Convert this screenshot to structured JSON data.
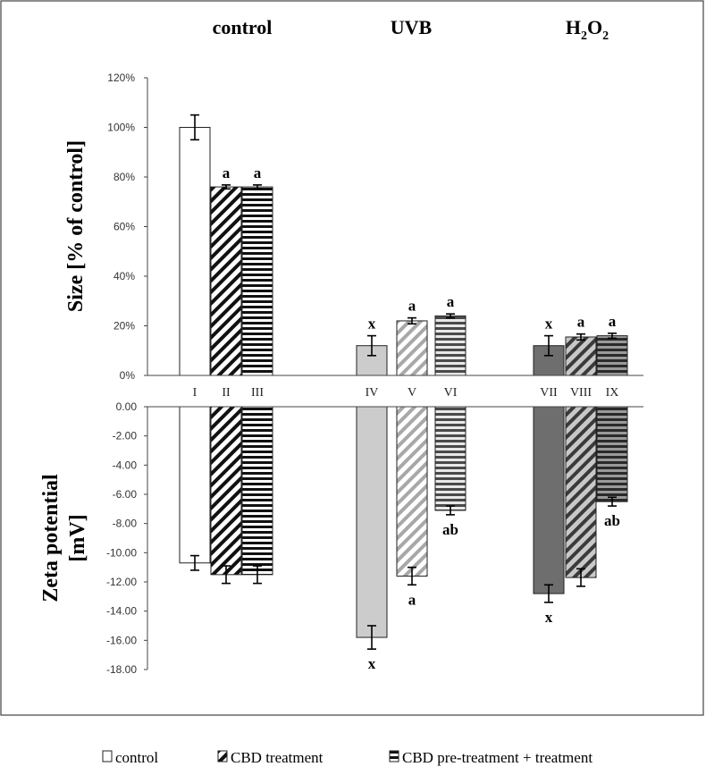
{
  "chart_data": [
    {
      "type": "bar",
      "ylabel": "Size [% of control]",
      "ylim": [
        0,
        120
      ],
      "yticks": [
        "0%",
        "20%",
        "40%",
        "60%",
        "80%",
        "100%",
        "120%"
      ],
      "grid": false,
      "groups": [
        {
          "label": "control",
          "categories": [
            "I",
            "II",
            "III"
          ]
        },
        {
          "label": "UVB",
          "categories": [
            "IV",
            "V",
            "VI"
          ]
        },
        {
          "label": "H2O2",
          "label_main": "H",
          "label_sub1": "2",
          "label_mid": "O",
          "label_sub2": "2",
          "categories": [
            "VII",
            "VIII",
            "IX"
          ]
        }
      ],
      "categories": [
        "I",
        "II",
        "III",
        "IV",
        "V",
        "VI",
        "VII",
        "VIII",
        "IX"
      ],
      "values": [
        100,
        76,
        76,
        12,
        22,
        24,
        12,
        15.5,
        16
      ],
      "errors": [
        5,
        0.8,
        0.8,
        4,
        1.2,
        0.8,
        4,
        1.2,
        1.0
      ],
      "significance": [
        "",
        "a",
        "a",
        "x",
        "a",
        "a",
        "x",
        "a",
        "a"
      ],
      "series": [
        "control",
        "CBD treatment",
        "CBD pre-treatment + treatment",
        "control",
        "CBD treatment",
        "CBD pre-treatment + treatment",
        "control",
        "CBD treatment",
        "CBD pre-treatment + treatment"
      ]
    },
    {
      "type": "bar",
      "ylabel_line1": "Zeta potential",
      "ylabel_line2": "[mV]",
      "ylim": [
        -18,
        0
      ],
      "yticks": [
        "0.00",
        "-2.00",
        "-4.00",
        "-6.00",
        "-8.00",
        "-10.00",
        "-12.00",
        "-14.00",
        "-16.00",
        "-18.00"
      ],
      "grid": false,
      "categories": [
        "I",
        "II",
        "III",
        "IV",
        "V",
        "VI",
        "VII",
        "VIII",
        "IX"
      ],
      "values": [
        -10.7,
        -11.5,
        -11.5,
        -15.8,
        -11.6,
        -7.1,
        -12.8,
        -11.7,
        -6.5
      ],
      "errors": [
        0.5,
        0.6,
        0.6,
        0.8,
        0.6,
        0.3,
        0.6,
        0.6,
        0.3
      ],
      "significance": [
        "",
        "",
        "",
        "x",
        "a",
        "ab",
        "x",
        "",
        "ab"
      ]
    }
  ],
  "legend": {
    "placement": "bottom",
    "items": [
      {
        "label": "control",
        "pattern": "white"
      },
      {
        "label": "CBD treatment",
        "pattern": "diagonal"
      },
      {
        "label": "CBD pre-treatment + treatment",
        "pattern": "horizontal"
      }
    ]
  },
  "colors": {
    "UVB": {
      "base": "#cccccc",
      "diagonal": "#d4d4d4"
    },
    "H2O2": {
      "base": "#6e6e6e",
      "diagonal": "#6b6b6b"
    },
    "control": {
      "base": "#ffffff"
    }
  }
}
